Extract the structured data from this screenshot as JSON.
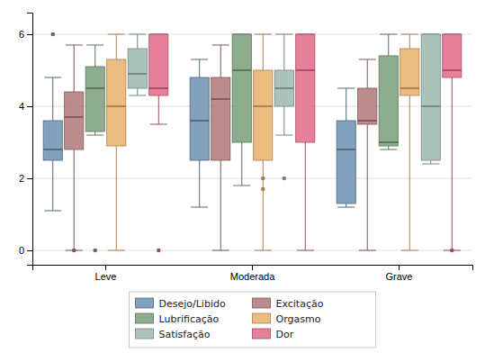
{
  "chart_data": {
    "type": "box",
    "categories": [
      "Leve",
      "Moderada",
      "Grave"
    ],
    "series": [
      {
        "name": "Desejo/Libido",
        "color": "#6d8fb0",
        "values": [
          {
            "whislo": 1.1,
            "q1": 2.5,
            "med": 2.8,
            "q3": 3.6,
            "whishi": 4.8,
            "fliers_low": [],
            "fliers_high": [
              6.0
            ]
          },
          {
            "whislo": 1.2,
            "q1": 2.5,
            "med": 3.6,
            "q3": 4.8,
            "whishi": 5.3,
            "fliers_low": [],
            "fliers_high": []
          },
          {
            "whislo": 1.2,
            "q1": 1.3,
            "med": 2.8,
            "q3": 3.6,
            "whishi": 4.5,
            "fliers_low": [],
            "fliers_high": []
          }
        ]
      },
      {
        "name": "Excitação",
        "color": "#b07878",
        "values": [
          {
            "whislo": 0.0,
            "q1": 2.8,
            "med": 3.7,
            "q3": 4.4,
            "whishi": 5.7,
            "fliers_low": [
              0.0
            ],
            "fliers_high": []
          },
          {
            "whislo": 0.0,
            "q1": 2.5,
            "med": 4.2,
            "q3": 4.8,
            "whishi": 5.7,
            "fliers_low": [],
            "fliers_high": []
          },
          {
            "whislo": 0.0,
            "q1": 3.5,
            "med": 3.6,
            "q3": 4.5,
            "whishi": 5.3,
            "fliers_low": [],
            "fliers_high": []
          }
        ]
      },
      {
        "name": "Lubrificação",
        "color": "#7a9e7a",
        "values": [
          {
            "whislo": 3.2,
            "q1": 3.3,
            "med": 4.5,
            "q3": 5.1,
            "whishi": 5.7,
            "fliers_low": [
              0.0
            ],
            "fliers_high": []
          },
          {
            "whislo": 1.8,
            "q1": 3.0,
            "med": 5.0,
            "q3": 6.0,
            "whishi": 6.0,
            "fliers_low": [],
            "fliers_high": []
          },
          {
            "whislo": 2.8,
            "q1": 2.9,
            "med": 3.0,
            "q3": 5.4,
            "whishi": 6.0,
            "fliers_low": [],
            "fliers_high": []
          }
        ]
      },
      {
        "name": "Orgasmo",
        "color": "#e8b06a",
        "values": [
          {
            "whislo": 0.0,
            "q1": 2.9,
            "med": 4.0,
            "q3": 5.3,
            "whishi": 6.0,
            "fliers_low": [],
            "fliers_high": []
          },
          {
            "whislo": 0.0,
            "q1": 2.5,
            "med": 4.0,
            "q3": 5.0,
            "whishi": 6.0,
            "fliers_low": [
              1.7,
              2.0
            ],
            "fliers_high": []
          },
          {
            "whislo": 0.0,
            "q1": 4.3,
            "med": 4.5,
            "q3": 5.6,
            "whishi": 6.0,
            "fliers_low": [],
            "fliers_high": []
          }
        ]
      },
      {
        "name": "Satisfação",
        "color": "#9eb8b0",
        "values": [
          {
            "whislo": 4.3,
            "q1": 4.5,
            "med": 4.9,
            "q3": 5.6,
            "whishi": 6.0,
            "fliers_low": [],
            "fliers_high": []
          },
          {
            "whislo": 3.2,
            "q1": 4.0,
            "med": 4.5,
            "q3": 5.0,
            "whishi": 6.0,
            "fliers_low": [
              2.0
            ],
            "fliers_high": []
          },
          {
            "whislo": 2.4,
            "q1": 2.5,
            "med": 4.0,
            "q3": 6.0,
            "whishi": 6.0,
            "fliers_low": [],
            "fliers_high": []
          }
        ]
      },
      {
        "name": "Dor",
        "color": "#e06888",
        "values": [
          {
            "whislo": 3.5,
            "q1": 4.3,
            "med": 4.5,
            "q3": 6.0,
            "whishi": 6.0,
            "fliers_low": [
              0.0
            ],
            "fliers_high": []
          },
          {
            "whislo": 0.0,
            "q1": 3.0,
            "med": 5.0,
            "q3": 6.0,
            "whishi": 6.0,
            "fliers_low": [],
            "fliers_high": []
          },
          {
            "whislo": 0.0,
            "q1": 4.8,
            "med": 5.0,
            "q3": 6.0,
            "whishi": 6.0,
            "fliers_low": [
              0.0
            ],
            "fliers_high": []
          }
        ]
      }
    ],
    "ylim": [
      -0.4,
      6.6
    ],
    "yticks": [
      0,
      2,
      4,
      6
    ],
    "grid": true,
    "legend": "bottom"
  }
}
